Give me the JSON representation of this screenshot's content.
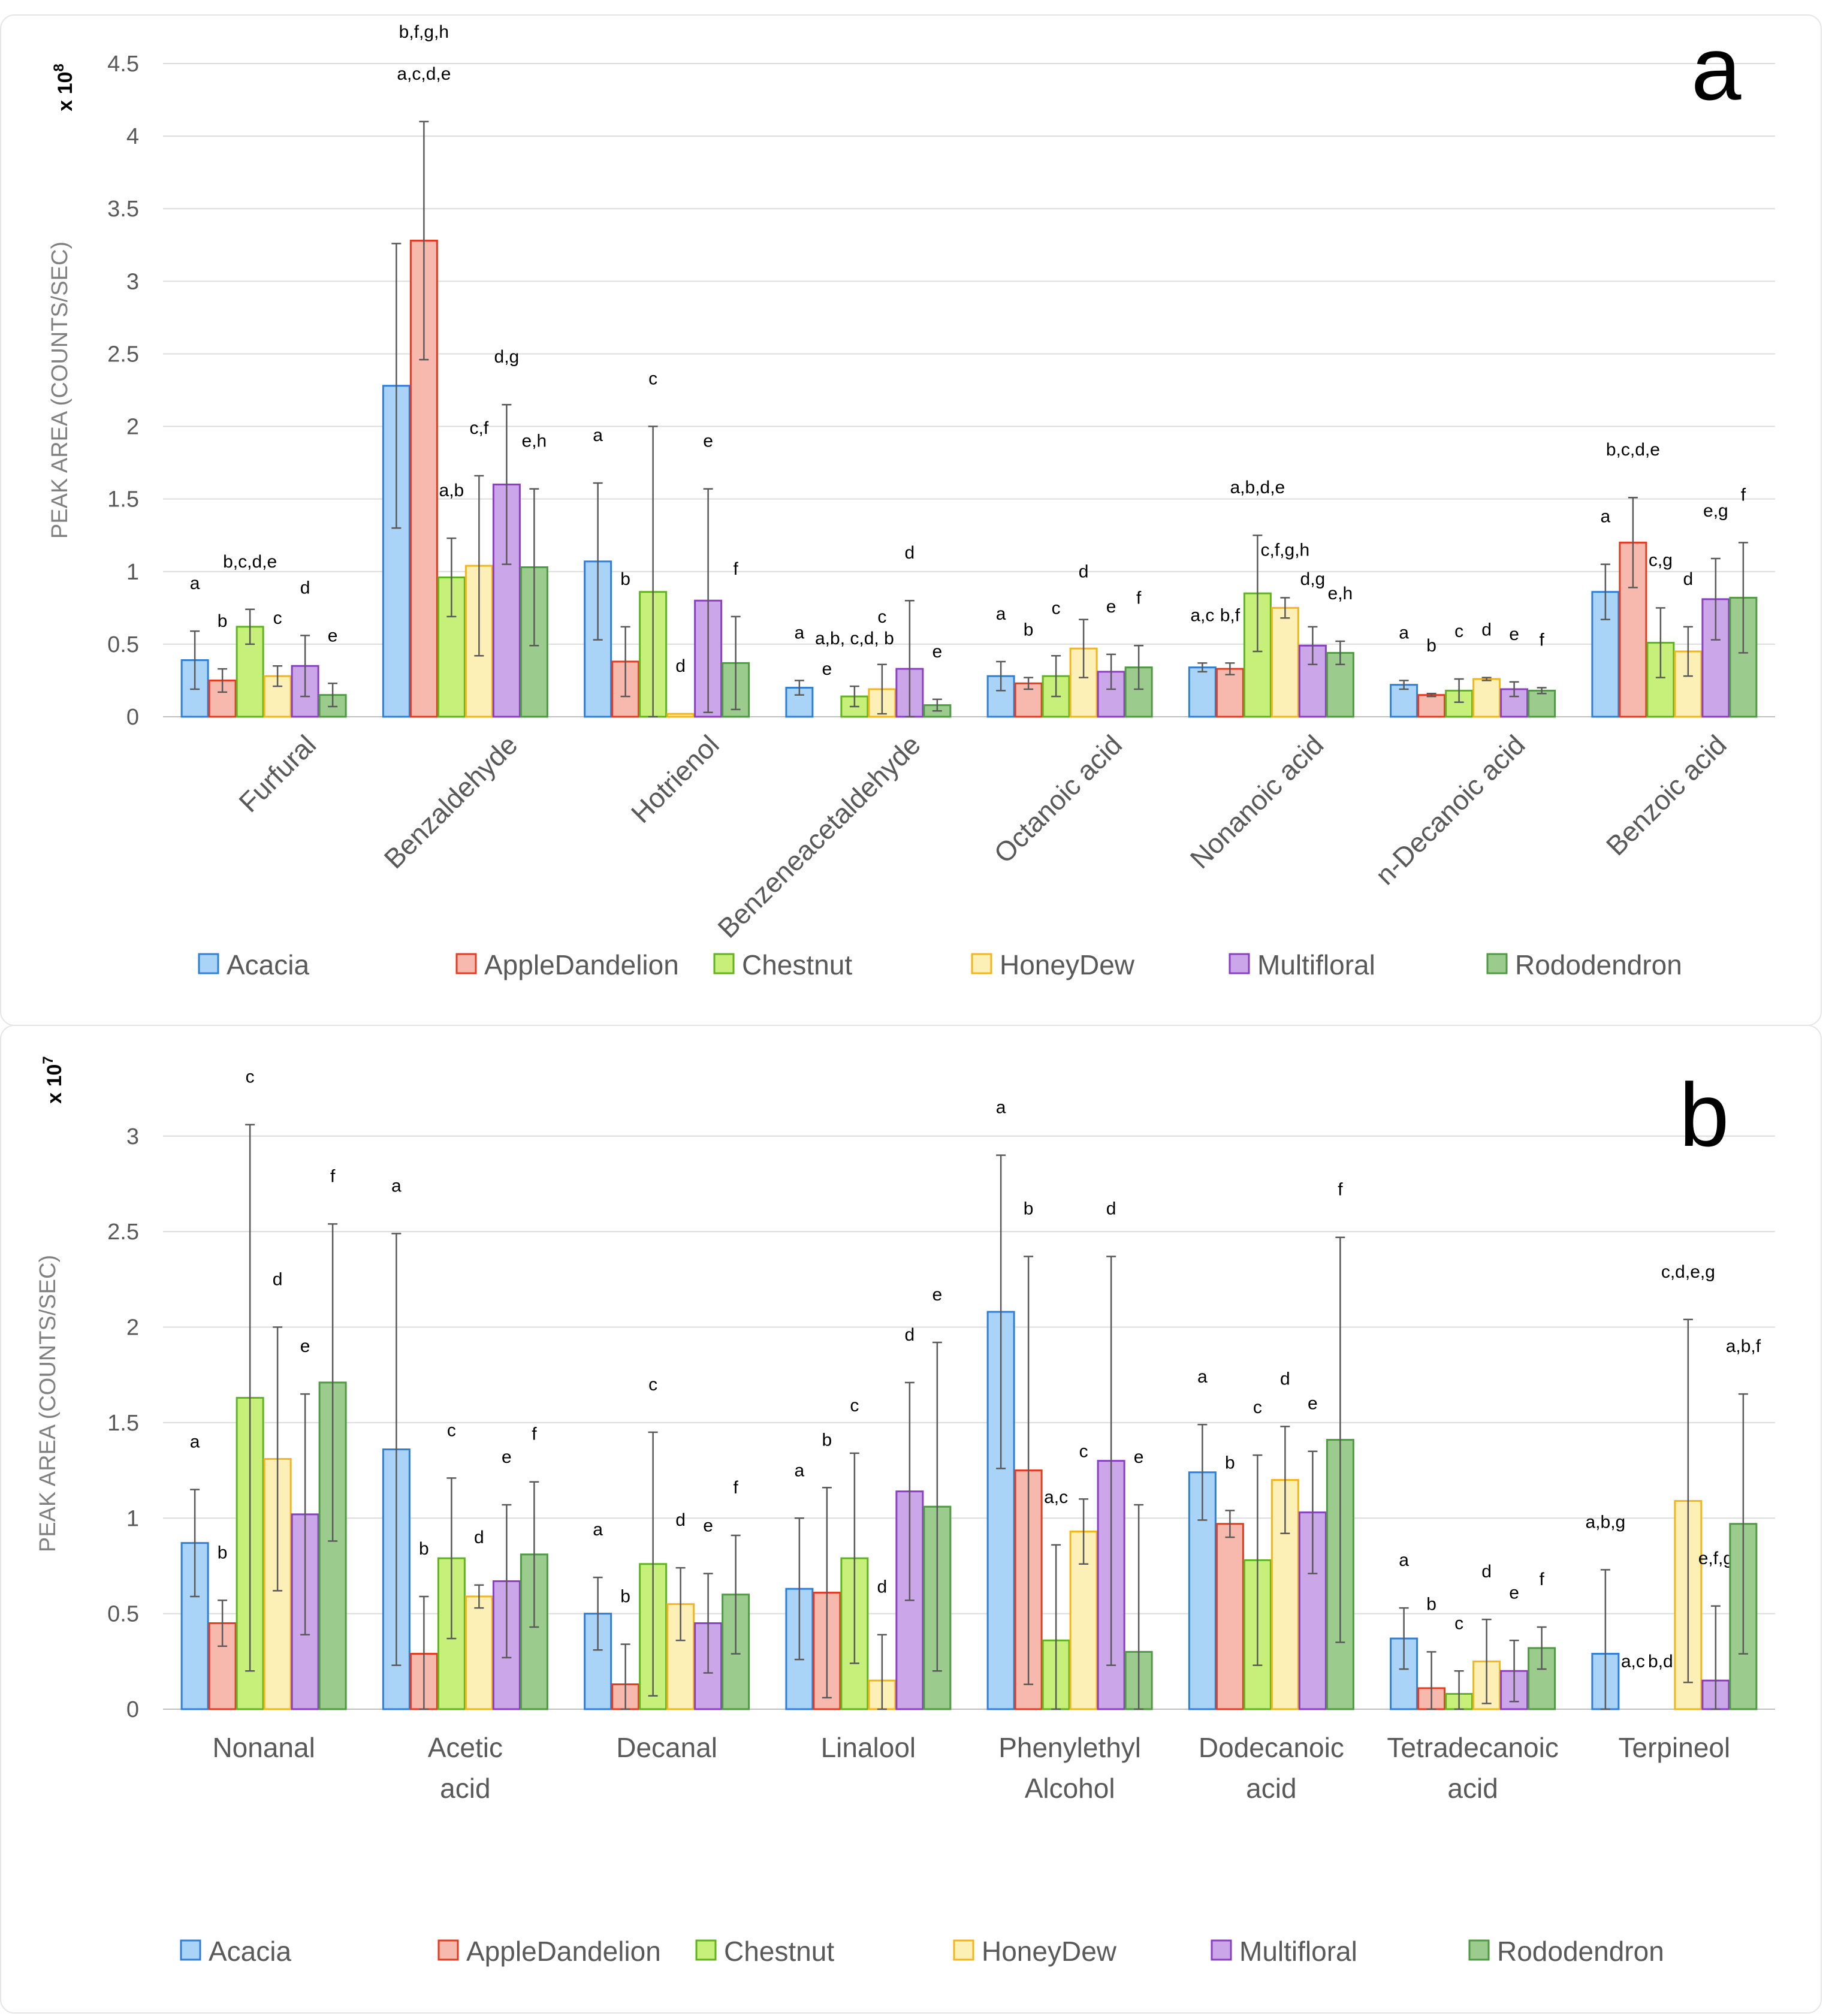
{
  "colors": {
    "Acacia": {
      "fill": "#a9d3f7",
      "stroke": "#2f7fd6"
    },
    "AppleDandelion": {
      "fill": "#f7b9ad",
      "stroke": "#e23b1f"
    },
    "Chestnut": {
      "fill": "#c6f07a",
      "stroke": "#60b21e"
    },
    "HoneyDew": {
      "fill": "#fdf0b7",
      "stroke": "#f2b51a"
    },
    "Multifloral": {
      "fill": "#cba7e9",
      "stroke": "#8a3fc1"
    },
    "Rododendron": {
      "fill": "#9bcc8e",
      "stroke": "#4e9a42"
    }
  },
  "chart_data": [
    {
      "type": "bar",
      "panel_label": "a",
      "ylabel": "PEAK AREA (COUNTS/SEC)",
      "multiplier": "x 10",
      "multiplier_exp": "8",
      "ylim": [
        0,
        4.5
      ],
      "yticks": [
        "0",
        "0.5",
        "1",
        "1.5",
        "2",
        "2.5",
        "3",
        "3.5",
        "4",
        "4.5"
      ],
      "ytick_values": [
        0,
        0.5,
        1,
        1.5,
        2,
        2.5,
        3,
        3.5,
        4,
        4.5
      ],
      "categories": [
        "Furfural",
        "Benzaldehyde",
        "Hotrienol",
        "Benzeneacetaldehyde",
        "Octanoic acid",
        "Nonanoic acid",
        "n-Decanoic acid",
        "Benzoic acid"
      ],
      "legend": [
        "Acacia",
        "AppleDandelion",
        "Chestnut",
        "HoneyDew",
        "Multifloral",
        "Rododendron"
      ],
      "series": [
        {
          "name": "Acacia",
          "values": [
            0.39,
            2.28,
            1.07,
            0.2,
            0.28,
            0.34,
            0.22,
            0.86
          ],
          "errors": [
            0.2,
            0.98,
            0.54,
            0.05,
            0.1,
            0.03,
            0.03,
            0.19
          ],
          "letters": [
            "a",
            "",
            "a",
            "a",
            "a",
            "a,c",
            "a",
            "a"
          ]
        },
        {
          "name": "AppleDandelion",
          "values": [
            0.25,
            3.28,
            0.38,
            0,
            0.23,
            0.33,
            0.15,
            1.2
          ],
          "errors": [
            0.08,
            0.82,
            0.24,
            0,
            0.04,
            0.04,
            0.01,
            0.31
          ],
          "letters": [
            "b",
            "a,c,d,e",
            "b",
            "e",
            "b",
            "b,f",
            "b",
            "b,c,d,e"
          ]
        },
        {
          "name": "Chestnut",
          "values": [
            0.62,
            0.96,
            0.86,
            0.14,
            0.28,
            0.85,
            0.18,
            0.51
          ],
          "errors": [
            0.12,
            0.27,
            1.14,
            0.07,
            0.14,
            0.4,
            0.08,
            0.24
          ],
          "letters": [
            "b,c,d,e",
            "a,b",
            "c",
            "a,b, c,d, b",
            "c",
            "a,b,d,e",
            "c",
            "c,g"
          ]
        },
        {
          "name": "HoneyDew",
          "values": [
            0.28,
            1.04,
            0.02,
            0.19,
            0.47,
            0.75,
            0.26,
            0.45
          ],
          "errors": [
            0.07,
            0.62,
            0,
            0.17,
            0.2,
            0.07,
            0.01,
            0.17
          ],
          "letters": [
            "c",
            "c,f",
            "d",
            "c",
            "d",
            "c,f,g,h",
            "d",
            "d"
          ]
        },
        {
          "name": "Multifloral",
          "values": [
            0.35,
            1.6,
            0.8,
            0.33,
            0.31,
            0.49,
            0.19,
            0.81
          ],
          "errors": [
            0.21,
            0.55,
            0.77,
            0.47,
            0.12,
            0.13,
            0.05,
            0.28
          ],
          "letters": [
            "d",
            "d,g",
            "e",
            "d",
            "e",
            "d,g",
            "e",
            "e,g"
          ]
        },
        {
          "name": "Rododendron",
          "values": [
            0.15,
            1.03,
            0.37,
            0.08,
            0.34,
            0.44,
            0.18,
            0.82
          ],
          "errors": [
            0.08,
            0.54,
            0.32,
            0.04,
            0.15,
            0.08,
            0.02,
            0.38
          ],
          "letters": [
            "e",
            "e,h",
            "f",
            "e",
            "f",
            "e,h",
            "f",
            "f"
          ]
        }
      ],
      "top_letters": [
        "",
        "b,f,g,h",
        "",
        "",
        "",
        "",
        "",
        ""
      ]
    },
    {
      "type": "bar",
      "panel_label": "b",
      "ylabel": "PEAK AREA (COUNTS/SEC)",
      "multiplier": "x 10",
      "multiplier_exp": "7",
      "ylim": [
        0,
        3.2
      ],
      "yticks": [
        "0",
        "0.5",
        "1",
        "1.5",
        "2",
        "2.5",
        "3"
      ],
      "ytick_values": [
        0,
        0.5,
        1,
        1.5,
        2,
        2.5,
        3
      ],
      "categories": [
        "Nonanal",
        "Acetic acid",
        "Decanal",
        "Linalool",
        "Phenylethyl Alcohol",
        "Dodecanoic acid",
        "Tetradecanoic acid",
        "Terpineol"
      ],
      "legend": [
        "Acacia",
        "AppleDandelion",
        "Chestnut",
        "HoneyDew",
        "Multifloral",
        "Rododendron"
      ],
      "series": [
        {
          "name": "Acacia",
          "values": [
            0.87,
            1.36,
            0.5,
            0.63,
            2.08,
            1.24,
            0.37,
            0.29
          ],
          "errors": [
            0.28,
            1.13,
            0.19,
            0.37,
            0.82,
            0.25,
            0.16,
            0.44
          ],
          "letters": [
            "a",
            "a",
            "a",
            "a",
            "a",
            "a",
            "a",
            "a,b,g"
          ]
        },
        {
          "name": "AppleDandelion",
          "values": [
            0.45,
            0.29,
            0.13,
            0.61,
            1.25,
            0.97,
            0.11,
            0
          ],
          "errors": [
            0.12,
            0.3,
            0.21,
            0.55,
            1.12,
            0.07,
            0.19,
            0
          ],
          "letters": [
            "b",
            "b",
            "b",
            "b",
            "b",
            "b",
            "b",
            "a,c"
          ]
        },
        {
          "name": "Chestnut",
          "values": [
            1.63,
            0.79,
            0.76,
            0.79,
            0.36,
            0.78,
            0.08,
            0
          ],
          "errors": [
            1.43,
            0.42,
            0.69,
            0.55,
            0.5,
            0.55,
            0.12,
            0
          ],
          "letters": [
            "c",
            "c",
            "c",
            "c",
            "a,c",
            "c",
            "c",
            "b,d"
          ]
        },
        {
          "name": "HoneyDew",
          "values": [
            1.31,
            0.59,
            0.55,
            0.15,
            0.93,
            1.2,
            0.25,
            1.09
          ],
          "errors": [
            0.69,
            0.06,
            0.19,
            0.24,
            0.17,
            0.28,
            0.22,
            0.95
          ],
          "letters": [
            "d",
            "d",
            "d",
            "d",
            "c",
            "d",
            "d",
            "c,d,e,g"
          ]
        },
        {
          "name": "Multifloral",
          "values": [
            1.02,
            0.67,
            0.45,
            1.14,
            1.3,
            1.03,
            0.2,
            0.15
          ],
          "errors": [
            0.63,
            0.4,
            0.26,
            0.57,
            1.07,
            0.32,
            0.16,
            0.39
          ],
          "letters": [
            "e",
            "e",
            "e",
            "d",
            "d",
            "e",
            "e",
            "e,f,g"
          ]
        },
        {
          "name": "Rododendron",
          "values": [
            1.71,
            0.81,
            0.6,
            1.06,
            0.3,
            1.41,
            0.32,
            0.97
          ],
          "errors": [
            0.83,
            0.38,
            0.31,
            0.86,
            0.77,
            1.06,
            0.11,
            0.68
          ],
          "letters": [
            "f",
            "f",
            "f",
            "e",
            "e",
            "f",
            "f",
            "a,b,f"
          ]
        }
      ],
      "top_letters": [
        "",
        "",
        "",
        "",
        "",
        "",
        "",
        ""
      ]
    }
  ]
}
